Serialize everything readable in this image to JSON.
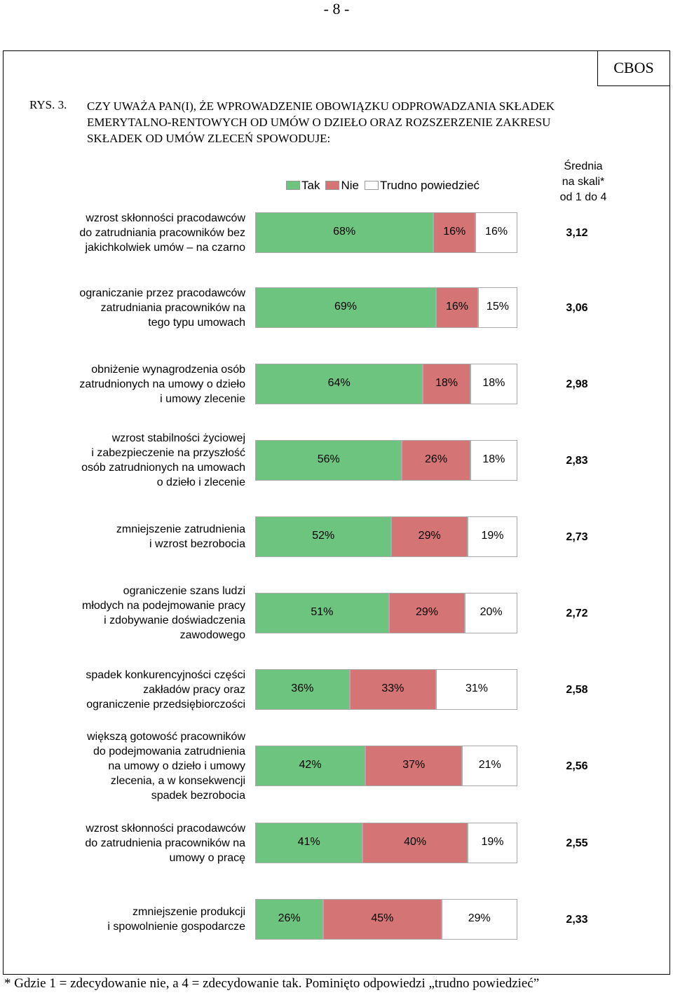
{
  "page_number": "- 8 -",
  "publisher": "CBOS",
  "figure_label": "RYS. 3.",
  "footnote": "* Gdzie 1 = zdecydowanie nie, a 4 = zdecydowanie tak. Pominięto odpowiedzi „trudno powiedzieć”",
  "chart_data": {
    "type": "stacked-bar-horizontal",
    "title": "CZY UWAŻA PAN(I), ŻE WPROWADZENIE OBOWIĄZKU ODPROWADZANIA SKŁADEK\nEMERYTALNO-RENTOWYCH OD UMÓW O DZIEŁO ORAZ ROZSZERZENIE ZAKRESU\nSKŁADEK OD UMÓW ZLECEŃ SPOWODUJE:",
    "xlim": [
      0,
      100
    ],
    "categories": [
      "wzrost skłonności pracodawców\ndo zatrudniania pracowników bez\njakichkolwiek umów – na czarno",
      "ograniczanie przez pracodawców\nzatrudniania pracowników na\ntego typu umowach",
      "obniżenie wynagrodzenia osób\nzatrudnionych na umowy o dzieło\ni umowy zlecenie",
      "wzrost stabilności życiowej\ni zabezpieczenie na przyszłość\nosób zatrudnionych na umowach\no dzieło i zlecenie",
      "zmniejszenie zatrudnienia\ni wzrost bezrobocia",
      "ograniczenie szans ludzi\nmłodych na podejmowanie pracy\ni zdobywanie doświadczenia\nzawodowego",
      "spadek konkurencyjności części\nzakładów pracy oraz\nograniczenie przedsiębiorczości",
      "większą gotowość pracowników\ndo podejmowania zatrudnienia\nna umowy o dzieło i umowy\nzlecenia, a w konsekwencji\nspadek bezrobocia",
      "wzrost skłonności pracodawców\ndo zatrudnienia pracowników na\numowy o pracę",
      "zmniejszenie produkcji\ni spowolnienie gospodarcze"
    ],
    "series": [
      {
        "name": "Tak",
        "color": "#6cc47f",
        "values": [
          68,
          69,
          64,
          56,
          52,
          51,
          36,
          42,
          41,
          26
        ],
        "value_labels": [
          "68%",
          "69%",
          "64%",
          "56%",
          "52%",
          "51%",
          "36%",
          "42%",
          "41%",
          "26%"
        ]
      },
      {
        "name": "Nie",
        "color": "#d47474",
        "values": [
          16,
          16,
          18,
          26,
          29,
          29,
          33,
          37,
          40,
          45
        ],
        "value_labels": [
          "16%",
          "16%",
          "18%",
          "26%",
          "29%",
          "29%",
          "33%",
          "37%",
          "40%",
          "45%"
        ]
      },
      {
        "name": "Trudno powiedzieć",
        "color": "#ffffff",
        "values": [
          16,
          15,
          18,
          18,
          19,
          20,
          31,
          21,
          19,
          29
        ],
        "value_labels": [
          "16%",
          "15%",
          "18%",
          "18%",
          "19%",
          "20%",
          "31%",
          "21%",
          "19%",
          "29%"
        ]
      }
    ],
    "means": {
      "title": "Średnia\nna skali*\nod 1 do 4",
      "values": [
        3.12,
        3.06,
        2.98,
        2.83,
        2.73,
        2.72,
        2.58,
        2.56,
        2.55,
        2.33
      ],
      "value_labels": [
        "3,12",
        "3,06",
        "2,98",
        "2,83",
        "2,73",
        "2,72",
        "2,58",
        "2,56",
        "2,55",
        "2,33"
      ]
    }
  }
}
